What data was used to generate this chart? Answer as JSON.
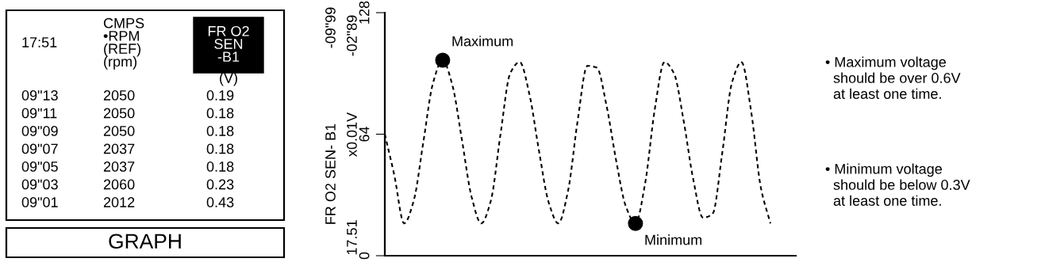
{
  "chart_data": [
    {
      "type": "other",
      "annotations": [
        "17:51",
        "CMPS\n•RPM\n(REF)\n(rpm)",
        "FR O2\nSEN\n-B1",
        "09\"13",
        "2050",
        "0.19",
        "09\"11",
        "2050",
        "0.18",
        "09\"09",
        "2050",
        "0.18",
        "09\"07",
        "2037",
        "0.18",
        "09\"05",
        "2037",
        "0.18",
        "09\"03",
        "2060",
        "0.23",
        "09\"01",
        "2012",
        "0.43",
        "(V)",
        "GRAPH"
      ]
    },
    {
      "type": "line",
      "ylabel": "FR O2 SEN- B1",
      "ylim": [
        0,
        128
      ],
      "yticks": [
        0,
        64,
        128
      ],
      "categories": [
        null,
        null,
        null,
        null,
        null,
        null,
        null,
        null,
        null,
        null,
        null,
        null,
        null,
        null,
        null,
        null,
        null,
        null,
        null,
        null,
        null,
        null,
        null,
        null,
        null,
        null,
        null,
        null,
        null,
        null,
        null,
        null,
        null,
        null,
        null,
        null,
        null,
        null,
        null,
        null,
        null
      ],
      "series": [
        {
          "type": "line",
          "color": "#000000",
          "line_style": "dashed",
          "values": [
            64,
            42,
            17,
            29,
            60,
            91,
            103,
            90,
            61,
            31,
            17,
            29,
            64,
            96,
            102,
            85,
            55,
            28,
            17,
            34,
            71,
            100,
            99,
            79,
            50,
            26,
            17,
            38,
            77,
            102,
            96,
            71,
            40,
            20,
            22,
            54,
            91,
            102,
            76,
            36,
            17
          ]
        },
        {
          "type": "scatter",
          "color": "#000000",
          "marker": "circle",
          "values": [
            null,
            null,
            null,
            null,
            null,
            null,
            103,
            null,
            null,
            null,
            null,
            null,
            null,
            null,
            null,
            null,
            null,
            null,
            null,
            null,
            null,
            null,
            null,
            null,
            null,
            null,
            17,
            null,
            null,
            null,
            null,
            null,
            null,
            null,
            null,
            null,
            null,
            null,
            null,
            null,
            null
          ]
        }
      ],
      "annotations": [
        "Maximum",
        "Minimum",
        "-09\"99",
        "-02\"89",
        "x0.01V",
        "17.51",
        "• Maximum voltage\n  should be over 0.6V\n  at least one time.",
        "• Minimum voltage\n  should be below 0.3V\n  at least one time."
      ]
    }
  ]
}
